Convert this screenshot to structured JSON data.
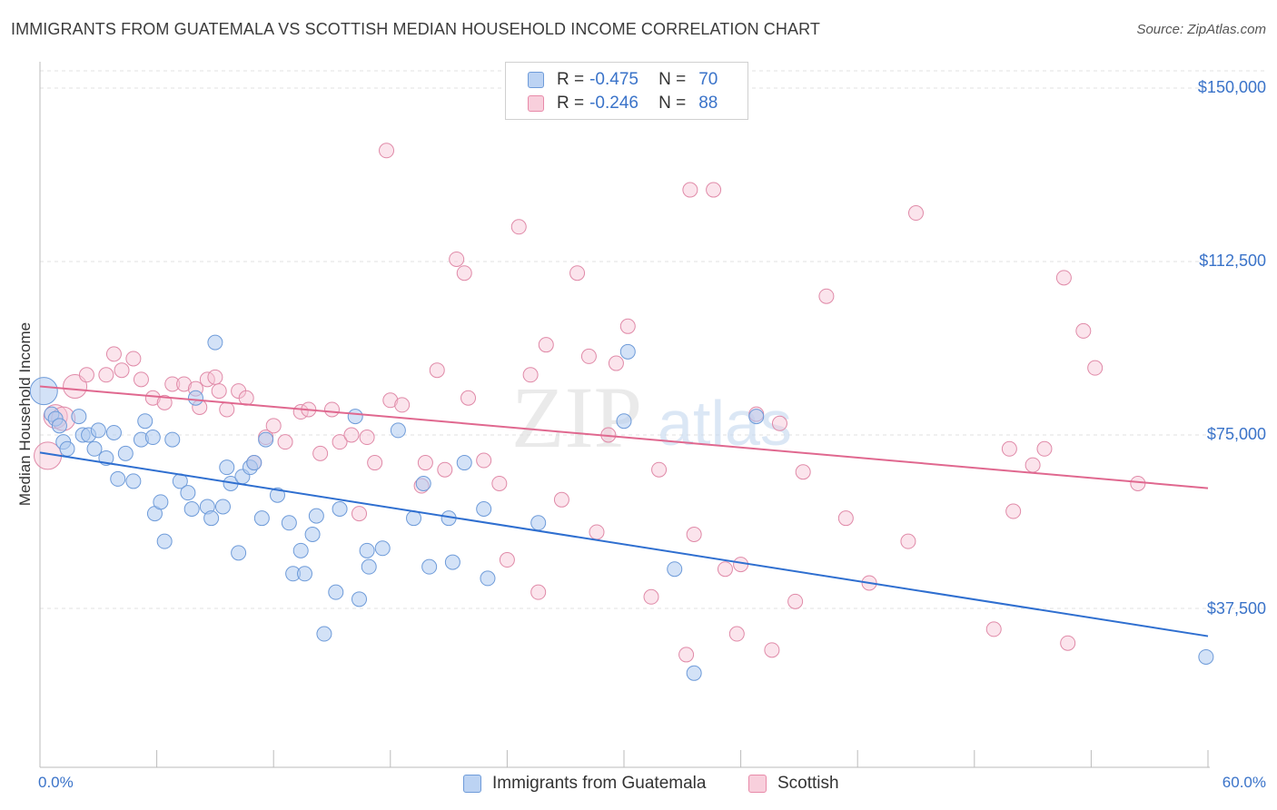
{
  "title": "IMMIGRANTS FROM GUATEMALA VS SCOTTISH MEDIAN HOUSEHOLD INCOME CORRELATION CHART",
  "source": "Source: ZipAtlas.com",
  "watermark": {
    "zip": "ZIP",
    "atlas": "atlas"
  },
  "colors": {
    "blue": "#3a73c9",
    "blue_fill": "#aecbf0",
    "pink": "#e0688f",
    "pink_fill": "#f6c4d4"
  },
  "stats": {
    "rows": [
      {
        "label": "R =",
        "r": "-0.475",
        "n_label": "N =",
        "n": "70"
      },
      {
        "label": "R =",
        "r": "-0.246",
        "n_label": "N =",
        "n": "88"
      }
    ]
  },
  "legend": {
    "series1": "Immigrants from Guatemala",
    "series2": "Scottish"
  },
  "chart_data": {
    "type": "scatter",
    "title": "IMMIGRANTS FROM GUATEMALA VS SCOTTISH MEDIAN HOUSEHOLD INCOME CORRELATION CHART",
    "xlabel": "",
    "ylabel": "Median Household Income",
    "xlim": [
      0,
      60
    ],
    "ylim": [
      0,
      154000
    ],
    "x_tick_labels": [
      "0.0%",
      "60.0%"
    ],
    "y_tick_labels": [
      "$150,000",
      "$112,500",
      "$75,000",
      "$37,500"
    ],
    "y_tick_values": [
      150000,
      112500,
      75000,
      37500
    ],
    "series": [
      {
        "name": "Immigrants from Guatemala",
        "r": -0.475,
        "n": 70,
        "trend": {
          "x": [
            0,
            60
          ],
          "y": [
            71200,
            31500
          ]
        },
        "points": [
          [
            0.2,
            84.5
          ],
          [
            0.6,
            79.5
          ],
          [
            0.8,
            78.5
          ],
          [
            1.0,
            77
          ],
          [
            1.2,
            73.5
          ],
          [
            1.4,
            72
          ],
          [
            2.0,
            79
          ],
          [
            2.2,
            75
          ],
          [
            2.5,
            75
          ],
          [
            2.8,
            72
          ],
          [
            3.0,
            76
          ],
          [
            3.4,
            70
          ],
          [
            3.8,
            75.5
          ],
          [
            4.0,
            65.5
          ],
          [
            4.4,
            71
          ],
          [
            4.8,
            65
          ],
          [
            5.2,
            74
          ],
          [
            5.4,
            78
          ],
          [
            5.8,
            74.5
          ],
          [
            5.9,
            58
          ],
          [
            6.2,
            60.5
          ],
          [
            6.4,
            52
          ],
          [
            6.8,
            74
          ],
          [
            7.2,
            65
          ],
          [
            7.6,
            62.5
          ],
          [
            7.8,
            59
          ],
          [
            8.0,
            83
          ],
          [
            8.6,
            59.5
          ],
          [
            8.8,
            57
          ],
          [
            9.0,
            95
          ],
          [
            9.4,
            59.5
          ],
          [
            9.6,
            68
          ],
          [
            9.8,
            64.5
          ],
          [
            10.2,
            49.5
          ],
          [
            10.4,
            66
          ],
          [
            10.8,
            68
          ],
          [
            11.0,
            69
          ],
          [
            11.4,
            57
          ],
          [
            11.6,
            74
          ],
          [
            12.2,
            62
          ],
          [
            12.8,
            56
          ],
          [
            13.0,
            45
          ],
          [
            13.4,
            50
          ],
          [
            13.6,
            45
          ],
          [
            14.0,
            53.5
          ],
          [
            14.2,
            57.5
          ],
          [
            14.6,
            32
          ],
          [
            15.2,
            41
          ],
          [
            15.4,
            59
          ],
          [
            16.2,
            79
          ],
          [
            16.4,
            39.5
          ],
          [
            16.8,
            50
          ],
          [
            16.9,
            46.5
          ],
          [
            17.6,
            50.5
          ],
          [
            18.4,
            76
          ],
          [
            19.2,
            57
          ],
          [
            19.7,
            64.5
          ],
          [
            20.0,
            46.5
          ],
          [
            21.0,
            57
          ],
          [
            21.2,
            47.5
          ],
          [
            21.8,
            69
          ],
          [
            23.0,
            44
          ],
          [
            22.8,
            59
          ],
          [
            25.6,
            56
          ],
          [
            30.0,
            78
          ],
          [
            30.2,
            93
          ],
          [
            32.6,
            46
          ],
          [
            33.6,
            23.5
          ],
          [
            36.8,
            79
          ],
          [
            59.9,
            27
          ]
        ]
      },
      {
        "name": "Scottish",
        "r": -0.246,
        "n": 88,
        "trend": {
          "x": [
            0,
            60
          ],
          "y": [
            85500,
            63500
          ]
        },
        "points": [
          [
            0.4,
            70.5
          ],
          [
            0.8,
            79
          ],
          [
            1.2,
            78.5
          ],
          [
            1.8,
            85.5
          ],
          [
            2.4,
            88
          ],
          [
            3.4,
            88
          ],
          [
            3.8,
            92.5
          ],
          [
            4.2,
            89
          ],
          [
            4.8,
            91.5
          ],
          [
            5.2,
            87
          ],
          [
            5.8,
            83
          ],
          [
            6.4,
            82
          ],
          [
            6.8,
            86
          ],
          [
            7.4,
            86
          ],
          [
            8.0,
            85
          ],
          [
            8.2,
            81
          ],
          [
            8.6,
            87
          ],
          [
            9.0,
            87.5
          ],
          [
            9.2,
            84.5
          ],
          [
            9.6,
            80.5
          ],
          [
            10.2,
            84.5
          ],
          [
            10.6,
            83
          ],
          [
            11.0,
            69
          ],
          [
            11.6,
            74.5
          ],
          [
            12.0,
            77
          ],
          [
            12.6,
            73.5
          ],
          [
            13.4,
            80
          ],
          [
            13.8,
            80.5
          ],
          [
            14.4,
            71
          ],
          [
            15.0,
            80.5
          ],
          [
            15.4,
            73.5
          ],
          [
            16.0,
            75
          ],
          [
            16.4,
            58
          ],
          [
            16.8,
            74.5
          ],
          [
            17.2,
            69
          ],
          [
            17.8,
            136.5
          ],
          [
            18.0,
            82.5
          ],
          [
            18.6,
            81.5
          ],
          [
            19.6,
            64
          ],
          [
            19.8,
            69
          ],
          [
            20.4,
            89
          ],
          [
            20.8,
            67.5
          ],
          [
            21.4,
            113
          ],
          [
            21.8,
            110
          ],
          [
            22.0,
            83
          ],
          [
            22.8,
            69.5
          ],
          [
            23.6,
            64.5
          ],
          [
            24.0,
            48
          ],
          [
            24.6,
            120
          ],
          [
            25.2,
            88
          ],
          [
            25.6,
            41
          ],
          [
            26.0,
            94.5
          ],
          [
            26.8,
            61
          ],
          [
            27.6,
            110
          ],
          [
            28.2,
            92
          ],
          [
            28.6,
            54
          ],
          [
            29.2,
            75
          ],
          [
            29.6,
            90.5
          ],
          [
            30.2,
            98.5
          ],
          [
            31.4,
            40
          ],
          [
            31.8,
            67.5
          ],
          [
            33.2,
            27.5
          ],
          [
            33.4,
            128
          ],
          [
            33.6,
            53.5
          ],
          [
            34.6,
            128
          ],
          [
            35.2,
            46
          ],
          [
            35.8,
            32
          ],
          [
            36.0,
            47
          ],
          [
            36.8,
            79.5
          ],
          [
            37.6,
            28.5
          ],
          [
            38.0,
            77.5
          ],
          [
            38.8,
            39
          ],
          [
            39.2,
            67
          ],
          [
            40.4,
            105
          ],
          [
            41.4,
            57
          ],
          [
            42.6,
            43
          ],
          [
            45.0,
            123
          ],
          [
            44.6,
            52
          ],
          [
            49.0,
            33
          ],
          [
            49.8,
            72
          ],
          [
            50.0,
            58.5
          ],
          [
            51.0,
            68.5
          ],
          [
            51.6,
            72
          ],
          [
            52.6,
            109
          ],
          [
            52.8,
            30
          ],
          [
            53.6,
            97.5
          ],
          [
            54.2,
            89.5
          ],
          [
            56.4,
            64.5
          ]
        ]
      }
    ]
  }
}
